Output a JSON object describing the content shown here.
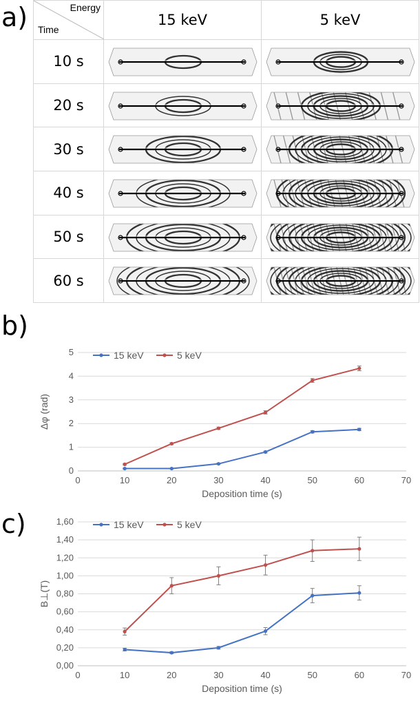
{
  "panels": {
    "a": "a)",
    "b": "b)",
    "c": "c)"
  },
  "table": {
    "corner_top": "Energy",
    "corner_bottom": "Time",
    "columns": [
      "15 keV",
      "5 keV"
    ],
    "rows": [
      "10 s",
      "20 s",
      "30 s",
      "40 s",
      "50 s",
      "60 s"
    ]
  },
  "chart_data": [
    {
      "type": "line",
      "title": "",
      "xlabel": "Deposition time (s)",
      "ylabel": "Δφ (rad)",
      "xlim": [
        0,
        70
      ],
      "ylim": [
        0,
        5
      ],
      "xticks": [
        "0",
        "10",
        "20",
        "30",
        "40",
        "50",
        "60",
        "70"
      ],
      "yticks": [
        "0",
        "1",
        "2",
        "3",
        "4",
        "5"
      ],
      "x": [
        10,
        20,
        30,
        40,
        50,
        60
      ],
      "legend_position": "top-left",
      "grid": true,
      "series": [
        {
          "name": "15 keV",
          "color": "#4472c4",
          "values": [
            0.1,
            0.1,
            0.3,
            0.8,
            1.65,
            1.75
          ],
          "errors": [
            0.02,
            0.02,
            0.03,
            0.04,
            0.05,
            0.05
          ]
        },
        {
          "name": "5 keV",
          "color": "#c0504d",
          "values": [
            0.28,
            1.15,
            1.8,
            2.47,
            3.82,
            4.33
          ],
          "errors": [
            0.03,
            0.04,
            0.05,
            0.07,
            0.08,
            0.1
          ]
        }
      ]
    },
    {
      "type": "line",
      "title": "",
      "xlabel": "Deposition time (s)",
      "ylabel": "B⊥(T)",
      "xlim": [
        0,
        70
      ],
      "ylim": [
        0,
        1.6
      ],
      "xticks": [
        "0",
        "10",
        "20",
        "30",
        "40",
        "50",
        "60",
        "70"
      ],
      "yticks": [
        "0,00",
        "0,20",
        "0,40",
        "0,60",
        "0,80",
        "1,00",
        "1,20",
        "1,40",
        "1,60"
      ],
      "x": [
        10,
        20,
        30,
        40,
        50,
        60
      ],
      "legend_position": "top-left",
      "grid": true,
      "series": [
        {
          "name": "15 keV",
          "color": "#4472c4",
          "values": [
            0.18,
            0.145,
            0.2,
            0.385,
            0.78,
            0.81
          ],
          "errors": [
            0.015,
            0.01,
            0.015,
            0.04,
            0.08,
            0.08
          ]
        },
        {
          "name": "5 keV",
          "color": "#c0504d",
          "values": [
            0.38,
            0.89,
            1.0,
            1.12,
            1.28,
            1.3
          ],
          "errors": [
            0.04,
            0.09,
            0.1,
            0.11,
            0.12,
            0.13
          ]
        }
      ]
    }
  ]
}
